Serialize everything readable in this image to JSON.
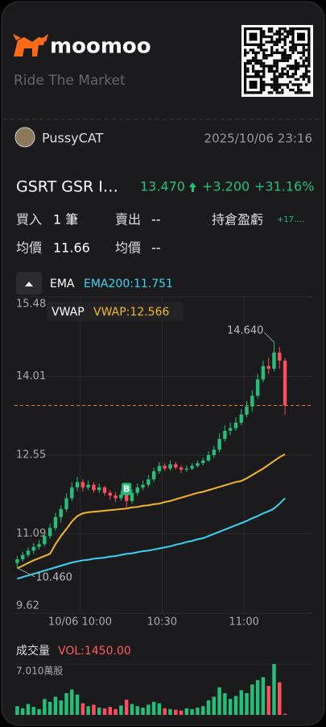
{
  "header": {
    "brand": "moomoo",
    "slogan": "Ride The Market"
  },
  "user": {
    "name": "PussyCAT",
    "time": "2025/10/06 23:16"
  },
  "quote": {
    "ticker": "GSRT GSR I…",
    "price": {
      "value": 13.47,
      "label": "13.470"
    },
    "change": "+3.200",
    "change_pct": "+31.16%"
  },
  "position": {
    "buy_label": "買入",
    "buy_count": "1 筆",
    "sell_label": "賣出",
    "sell_count": "--",
    "pnl_label": "持倉盈虧",
    "pnl": "+17.…",
    "buy_avg_label": "均價",
    "buy_avg": "11.66",
    "sell_avg_label": "均價",
    "sell_avg": "--"
  },
  "chart_data": {
    "type": "candlestick",
    "up_color": "#22c07a",
    "down_color": "#ff4d5b",
    "grid": true,
    "indicator_groups": [
      "EMA",
      "VWAP"
    ],
    "x": [
      577,
      579,
      581,
      583,
      585,
      587,
      589,
      591,
      593,
      595,
      597,
      599,
      601,
      603,
      605,
      607,
      609,
      611,
      613,
      615,
      617,
      619,
      621,
      623,
      625,
      627,
      629,
      631,
      633,
      635,
      637,
      639,
      641,
      643,
      645,
      647,
      649,
      651,
      653,
      655,
      657,
      659,
      661,
      663,
      665,
      667,
      669,
      671,
      673,
      675
    ],
    "xlim": [
      576,
      685
    ],
    "xticks": [
      {
        "value": 600,
        "label": "10/06 10:00"
      },
      {
        "value": 630,
        "label": "10:30"
      },
      {
        "value": 660,
        "label": "11:00"
      }
    ],
    "ylim": [
      9.62,
      15.48
    ],
    "yticks": [
      15.48,
      14.01,
      12.55,
      11.09,
      9.62
    ],
    "ohlc": [
      [
        10.55,
        10.68,
        10.46,
        10.62
      ],
      [
        10.62,
        10.76,
        10.58,
        10.7
      ],
      [
        10.7,
        10.84,
        10.66,
        10.78
      ],
      [
        10.78,
        10.92,
        10.72,
        10.85
      ],
      [
        10.85,
        10.98,
        10.8,
        10.9
      ],
      [
        10.9,
        11.12,
        10.86,
        11.05
      ],
      [
        11.05,
        11.28,
        11.0,
        11.2
      ],
      [
        11.2,
        11.48,
        11.15,
        11.4
      ],
      [
        11.4,
        11.62,
        11.3,
        11.55
      ],
      [
        11.55,
        11.84,
        11.5,
        11.75
      ],
      [
        11.75,
        12.05,
        11.7,
        11.95
      ],
      [
        11.95,
        12.15,
        11.88,
        12.05
      ],
      [
        12.05,
        12.1,
        11.88,
        11.95
      ],
      [
        11.95,
        12.08,
        11.9,
        12.0
      ],
      [
        12.0,
        12.05,
        11.85,
        11.9
      ],
      [
        11.9,
        12.02,
        11.85,
        11.95
      ],
      [
        11.95,
        11.98,
        11.8,
        11.85
      ],
      [
        11.85,
        11.9,
        11.72,
        11.8
      ],
      [
        11.8,
        11.86,
        11.68,
        11.75
      ],
      [
        11.75,
        11.9,
        11.7,
        11.82
      ],
      [
        11.82,
        11.85,
        11.55,
        11.7
      ],
      [
        11.7,
        11.92,
        11.65,
        11.85
      ],
      [
        11.85,
        12.02,
        11.8,
        11.95
      ],
      [
        11.95,
        12.08,
        11.9,
        12.0
      ],
      [
        12.0,
        12.18,
        11.95,
        12.1
      ],
      [
        12.1,
        12.32,
        12.05,
        12.25
      ],
      [
        12.25,
        12.42,
        12.2,
        12.35
      ],
      [
        12.35,
        12.4,
        12.25,
        12.3
      ],
      [
        12.3,
        12.45,
        12.26,
        12.38
      ],
      [
        12.38,
        12.42,
        12.28,
        12.32
      ],
      [
        12.32,
        12.36,
        12.22,
        12.28
      ],
      [
        12.28,
        12.36,
        12.24,
        12.3
      ],
      [
        12.3,
        12.4,
        12.27,
        12.35
      ],
      [
        12.35,
        12.45,
        12.32,
        12.4
      ],
      [
        12.4,
        12.5,
        12.36,
        12.45
      ],
      [
        12.45,
        12.62,
        12.42,
        12.55
      ],
      [
        12.55,
        12.72,
        12.5,
        12.65
      ],
      [
        12.65,
        12.95,
        12.6,
        12.85
      ],
      [
        12.85,
        13.1,
        12.8,
        13.0
      ],
      [
        13.0,
        13.15,
        12.92,
        13.05
      ],
      [
        13.05,
        13.25,
        13.0,
        13.15
      ],
      [
        13.15,
        13.4,
        13.1,
        13.3
      ],
      [
        13.3,
        13.55,
        13.25,
        13.45
      ],
      [
        13.45,
        13.75,
        13.35,
        13.65
      ],
      [
        13.65,
        14.05,
        13.6,
        13.95
      ],
      [
        13.95,
        14.3,
        13.9,
        14.2
      ],
      [
        14.2,
        14.35,
        14.05,
        14.15
      ],
      [
        14.15,
        14.64,
        14.1,
        14.45
      ],
      [
        14.45,
        14.55,
        14.15,
        14.3
      ],
      [
        14.3,
        14.35,
        13.3,
        13.47
      ]
    ],
    "series": [
      {
        "name": "EMA200:11.751",
        "color": "#3ad3f2",
        "values": [
          10.26,
          10.29,
          10.32,
          10.35,
          10.38,
          10.41,
          10.44,
          10.47,
          10.5,
          10.53,
          10.56,
          10.58,
          10.6,
          10.61,
          10.63,
          10.64,
          10.65,
          10.67,
          10.68,
          10.7,
          10.72,
          10.73,
          10.75,
          10.77,
          10.78,
          10.8,
          10.82,
          10.84,
          10.86,
          10.89,
          10.91,
          10.94,
          10.96,
          10.99,
          11.01,
          11.05,
          11.09,
          11.13,
          11.17,
          11.21,
          11.25,
          11.29,
          11.33,
          11.38,
          11.42,
          11.47,
          11.51,
          11.56,
          11.65,
          11.751
        ]
      },
      {
        "name": "VWAP:12.566",
        "color": "#f2b824",
        "values": [
          10.45,
          10.5,
          10.55,
          10.6,
          10.64,
          10.68,
          10.72,
          10.9,
          11.05,
          11.18,
          11.32,
          11.42,
          11.47,
          11.49,
          11.5,
          11.51,
          11.52,
          11.53,
          11.54,
          11.55,
          11.56,
          11.58,
          11.59,
          11.61,
          11.62,
          11.64,
          11.65,
          11.68,
          11.7,
          11.73,
          11.76,
          11.79,
          11.82,
          11.85,
          11.87,
          11.9,
          11.93,
          11.96,
          11.99,
          12.02,
          12.05,
          12.07,
          12.12,
          12.18,
          12.24,
          12.3,
          12.37,
          12.44,
          12.51,
          12.566
        ]
      }
    ],
    "annotations": [
      {
        "x": 671,
        "value": 14.64,
        "label": "14.640"
      },
      {
        "x": 577,
        "value": 10.46,
        "label": "10.460"
      },
      {
        "x": 617,
        "value": 11.66,
        "label": "B"
      }
    ],
    "volume": {
      "title": "成交量",
      "label": "VOL:1450.00",
      "values": [
        12000,
        9000,
        15000,
        11000,
        8000,
        22000,
        18000,
        25000,
        20000,
        30000,
        35000,
        28000,
        16000,
        12000,
        14000,
        10000,
        9000,
        11000,
        8000,
        13000,
        21000,
        15000,
        12000,
        10000,
        14000,
        18000,
        16000,
        9000,
        8000,
        7000,
        6000,
        9000,
        8000,
        10000,
        12000,
        20000,
        25000,
        38000,
        30000,
        22000,
        26000,
        34000,
        30000,
        42000,
        48000,
        52000,
        40000,
        70100,
        45000,
        1450
      ],
      "ylim": [
        0,
        70100
      ],
      "yticks": [
        {
          "value": 70100,
          "label": "7.010萬股"
        }
      ]
    }
  }
}
